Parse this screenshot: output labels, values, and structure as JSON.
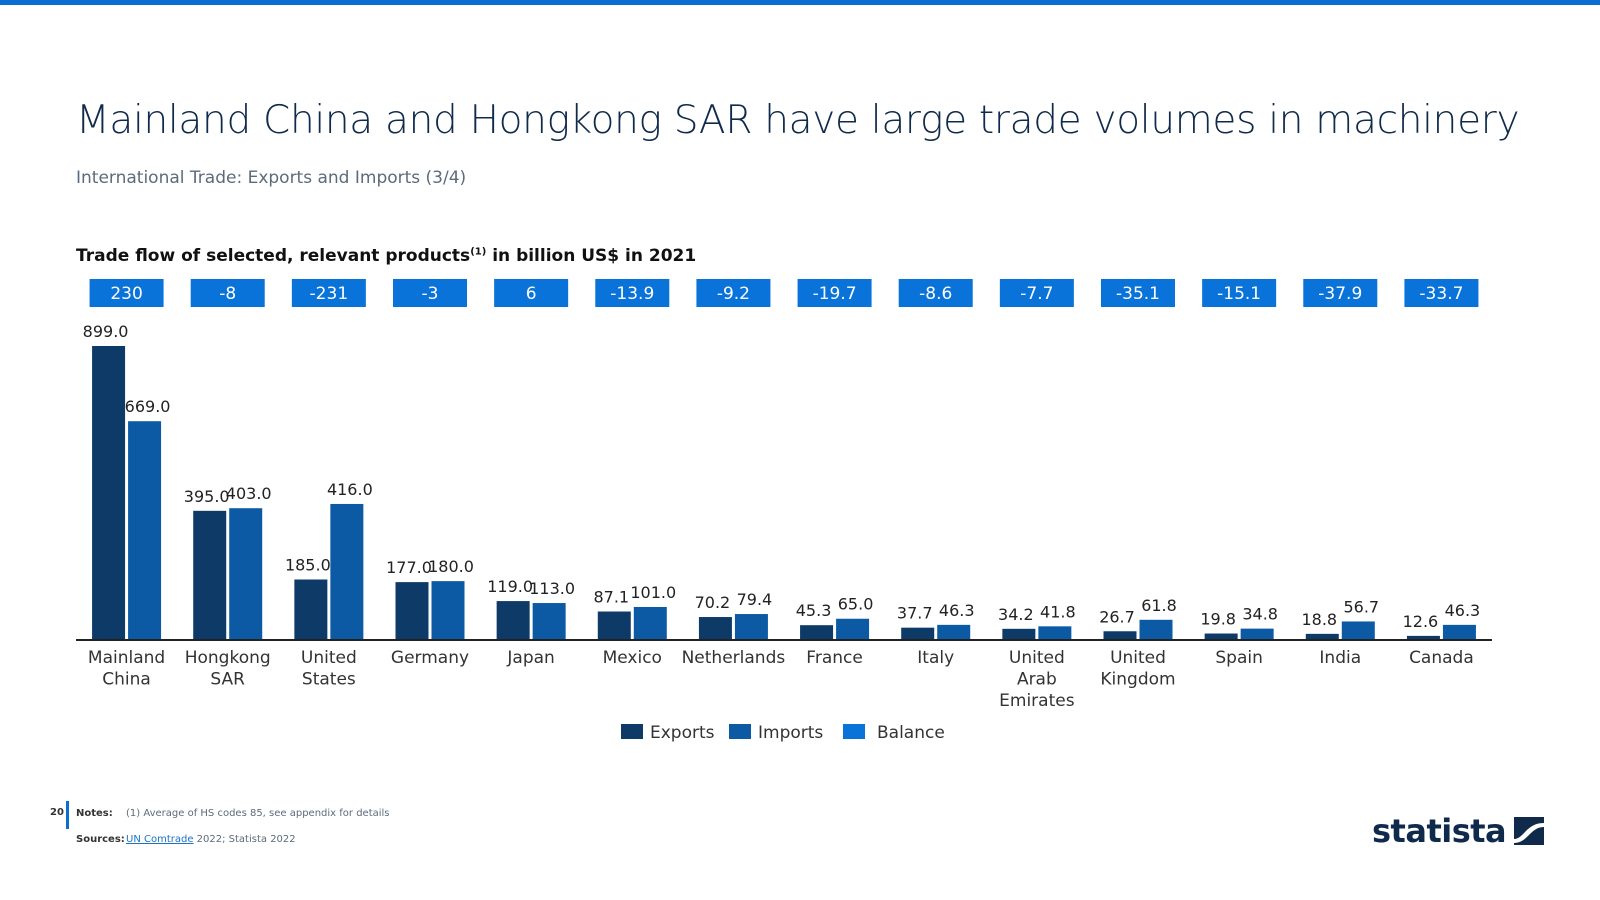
{
  "page": {
    "title": "Mainland China and Hongkong SAR have large trade volumes in machinery",
    "subtitle": "International Trade: Exports and Imports (3/4)",
    "page_number": "20",
    "notes_label": "Notes:",
    "notes_text": "(1) Average of HS codes 85, see appendix for details",
    "sources_label": "Sources:",
    "sources_link": "UN Comtrade",
    "sources_text": " 2022; Statista 2022",
    "logo_text": "statista"
  },
  "colors": {
    "exports": "#0d3a66",
    "imports": "#0b5aa3",
    "balance": "#0a73d9",
    "accent": "#0a6ed1"
  },
  "chart_data": {
    "type": "bar",
    "title_main": "Trade flow of selected, relevant products",
    "title_sup": "(1)",
    "title_rest": " in billion US$ in 2021",
    "categories": [
      [
        "Mainland",
        "China"
      ],
      [
        "Hongkong",
        "SAR"
      ],
      [
        "United",
        "States"
      ],
      [
        "Germany"
      ],
      [
        "Japan"
      ],
      [
        "Mexico"
      ],
      [
        "Netherlands"
      ],
      [
        "France"
      ],
      [
        "Italy"
      ],
      [
        "United",
        "Arab",
        "Emirates"
      ],
      [
        "United",
        "Kingdom"
      ],
      [
        "Spain"
      ],
      [
        "India"
      ],
      [
        "Canada"
      ]
    ],
    "series": [
      {
        "name": "Exports",
        "values": [
          899.0,
          395.0,
          185.0,
          177.0,
          119.0,
          87.1,
          70.2,
          45.3,
          37.7,
          34.2,
          26.7,
          19.8,
          18.8,
          12.6
        ]
      },
      {
        "name": "Imports",
        "values": [
          669.0,
          403.0,
          416.0,
          180.0,
          113.0,
          101.0,
          79.4,
          65.0,
          46.3,
          41.8,
          61.8,
          34.8,
          56.7,
          46.3
        ]
      }
    ],
    "balance": {
      "name": "Balance",
      "values": [
        "230",
        "-8",
        "-231",
        "-3",
        "6",
        "-13.9",
        "-9.2",
        "-19.7",
        "-8.6",
        "-7.7",
        "-35.1",
        "-15.1",
        "-37.9",
        "-33.7"
      ]
    },
    "legend": [
      "Exports",
      "Imports",
      "Balance"
    ],
    "legend_position": "bottom",
    "ylim": [
      0,
      899
    ],
    "grid": false
  }
}
